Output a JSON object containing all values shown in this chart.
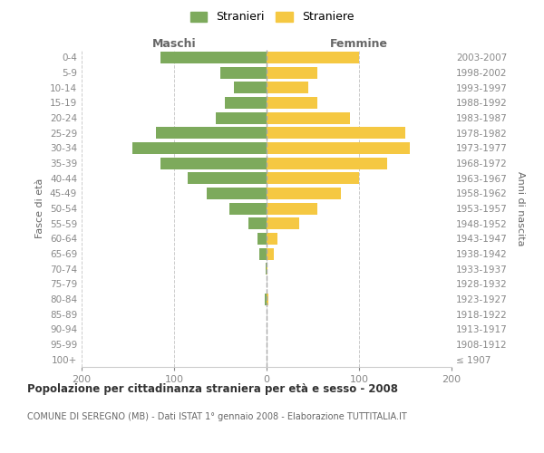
{
  "age_groups": [
    "100+",
    "95-99",
    "90-94",
    "85-89",
    "80-84",
    "75-79",
    "70-74",
    "65-69",
    "60-64",
    "55-59",
    "50-54",
    "45-49",
    "40-44",
    "35-39",
    "30-34",
    "25-29",
    "20-24",
    "15-19",
    "10-14",
    "5-9",
    "0-4"
  ],
  "birth_years": [
    "≤ 1907",
    "1908-1912",
    "1913-1917",
    "1918-1922",
    "1923-1927",
    "1928-1932",
    "1933-1937",
    "1938-1942",
    "1943-1947",
    "1948-1952",
    "1953-1957",
    "1958-1962",
    "1963-1967",
    "1968-1972",
    "1973-1977",
    "1978-1982",
    "1983-1987",
    "1988-1992",
    "1993-1997",
    "1998-2002",
    "2003-2007"
  ],
  "males": [
    0,
    0,
    0,
    0,
    2,
    0,
    1,
    8,
    10,
    20,
    40,
    65,
    85,
    115,
    145,
    120,
    55,
    45,
    35,
    50,
    115
  ],
  "females": [
    0,
    0,
    0,
    0,
    2,
    0,
    1,
    8,
    12,
    35,
    55,
    80,
    100,
    130,
    155,
    150,
    90,
    55,
    45,
    55,
    100
  ],
  "male_color": "#7daa5c",
  "female_color": "#f5c842",
  "title1": "Popolazione per cittadinanza straniera per età e sesso - 2008",
  "title2": "COMUNE DI SEREGNO (MB) - Dati ISTAT 1° gennaio 2008 - Elaborazione TUTTITALIA.IT",
  "ylabel_left": "Fasce di età",
  "ylabel_right": "Anni di nascita",
  "xlabel_maschi": "Maschi",
  "xlabel_femmine": "Femmine",
  "legend_maschi": "Stranieri",
  "legend_femmine": "Straniere",
  "xlim": 200,
  "background_color": "#ffffff",
  "grid_color": "#cccccc"
}
